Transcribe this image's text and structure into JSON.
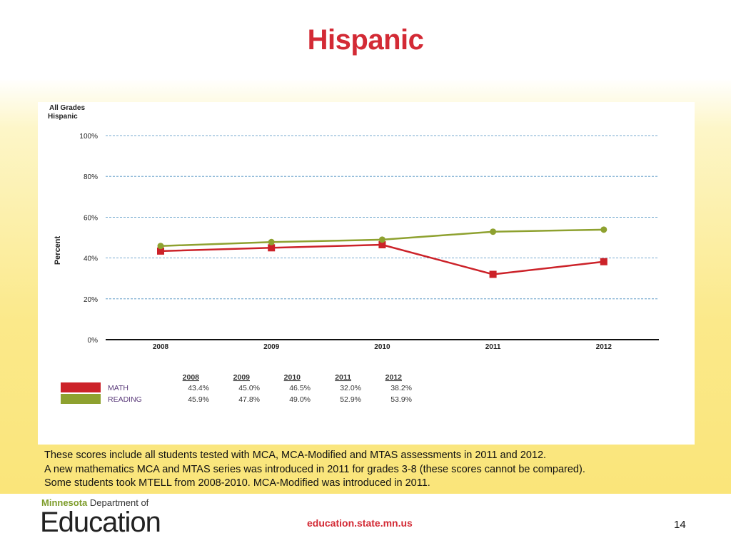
{
  "title": "Hispanic",
  "chart_data": {
    "type": "line",
    "title": "All Grades",
    "subtitle": "Hispanic",
    "ylabel": "Percent",
    "xlabel": "",
    "categories": [
      "2008",
      "2009",
      "2010",
      "2011",
      "2012"
    ],
    "yticks": [
      "0%",
      "20%",
      "40%",
      "60%",
      "80%",
      "100%"
    ],
    "ylim": [
      0,
      100
    ],
    "grid": true,
    "legend": "bottom-left table",
    "series": [
      {
        "name": "MATH",
        "color": "#cc2229",
        "marker": "square",
        "values": [
          43.4,
          45.0,
          46.5,
          32.0,
          38.2
        ],
        "labels": [
          "43.4%",
          "45.0%",
          "46.5%",
          "32.0%",
          "38.2%"
        ]
      },
      {
        "name": "READING",
        "color": "#8ea12f",
        "marker": "circle",
        "values": [
          45.9,
          47.8,
          49.0,
          52.9,
          53.9
        ],
        "labels": [
          "45.9%",
          "47.8%",
          "49.0%",
          "52.9%",
          "53.9%"
        ]
      }
    ]
  },
  "notes": [
    "These scores include all students tested with MCA, MCA-Modified and MTAS assessments in 2011 and 2012.",
    "A new mathematics MCA and MTAS series was introduced in 2011 for grades 3-8 (these scores cannot be compared).",
    "Some students took MTELL from 2008-2010.  MCA-Modified was introduced in 2011."
  ],
  "footer": {
    "logo_state": "Minnesota",
    "logo_dept": "Department of",
    "logo_main": "Education",
    "url": "education.state.mn.us",
    "page": "14"
  }
}
